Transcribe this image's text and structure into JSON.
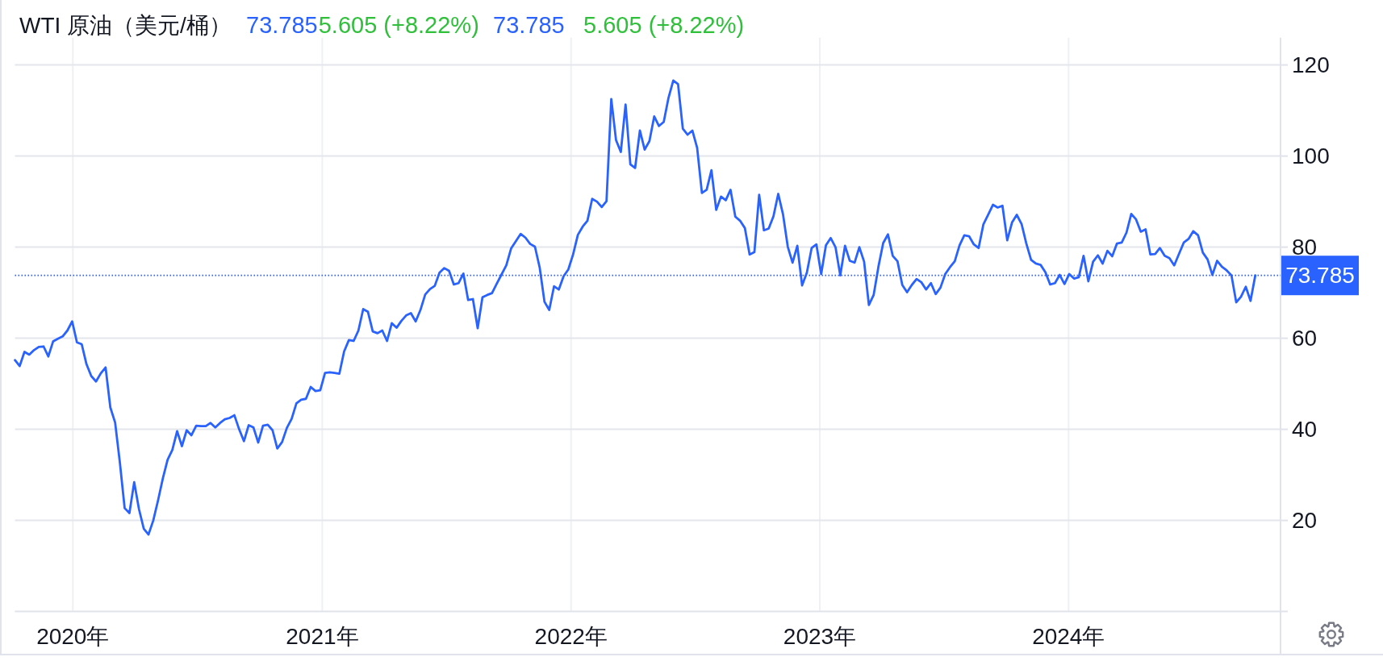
{
  "chart_data": {
    "type": "line",
    "title": "WTI 原油（美元/桶）",
    "annotations": [
      "73.785",
      "5.605 (+8.22%)",
      "73.785",
      "5.605 (+8.22%)"
    ],
    "x": [
      "2019-10-08",
      "2019-10-15",
      "2019-10-22",
      "2019-10-29",
      "2019-11-05",
      "2019-11-12",
      "2019-11-19",
      "2019-11-26",
      "2019-12-03",
      "2019-12-10",
      "2019-12-17",
      "2019-12-24",
      "2019-12-31",
      "2020-01-07",
      "2020-01-14",
      "2020-01-21",
      "2020-01-28",
      "2020-02-04",
      "2020-02-11",
      "2020-02-18",
      "2020-02-25",
      "2020-03-03",
      "2020-03-10",
      "2020-03-17",
      "2020-03-24",
      "2020-03-31",
      "2020-04-07",
      "2020-04-14",
      "2020-04-21",
      "2020-04-28",
      "2020-05-05",
      "2020-05-12",
      "2020-05-19",
      "2020-05-26",
      "2020-06-02",
      "2020-06-09",
      "2020-06-16",
      "2020-06-23",
      "2020-06-30",
      "2020-07-07",
      "2020-07-14",
      "2020-07-21",
      "2020-07-28",
      "2020-08-04",
      "2020-08-11",
      "2020-08-18",
      "2020-08-25",
      "2020-09-01",
      "2020-09-08",
      "2020-09-15",
      "2020-09-22",
      "2020-09-29",
      "2020-10-06",
      "2020-10-13",
      "2020-10-20",
      "2020-10-27",
      "2020-11-03",
      "2020-11-10",
      "2020-11-17",
      "2020-11-24",
      "2020-12-01",
      "2020-12-08",
      "2020-12-15",
      "2020-12-22",
      "2020-12-29",
      "2021-01-05",
      "2021-01-12",
      "2021-01-19",
      "2021-01-26",
      "2021-02-02",
      "2021-02-09",
      "2021-02-16",
      "2021-02-23",
      "2021-03-02",
      "2021-03-09",
      "2021-03-16",
      "2021-03-23",
      "2021-03-30",
      "2021-04-06",
      "2021-04-13",
      "2021-04-20",
      "2021-04-27",
      "2021-05-04",
      "2021-05-11",
      "2021-05-18",
      "2021-05-25",
      "2021-06-01",
      "2021-06-08",
      "2021-06-15",
      "2021-06-22",
      "2021-06-29",
      "2021-07-06",
      "2021-07-13",
      "2021-07-20",
      "2021-07-27",
      "2021-08-03",
      "2021-08-10",
      "2021-08-17",
      "2021-08-24",
      "2021-08-31",
      "2021-09-07",
      "2021-09-14",
      "2021-09-21",
      "2021-09-28",
      "2021-10-05",
      "2021-10-12",
      "2021-10-19",
      "2021-10-26",
      "2021-11-02",
      "2021-11-09",
      "2021-11-16",
      "2021-11-23",
      "2021-11-30",
      "2021-12-07",
      "2021-12-14",
      "2021-12-21",
      "2021-12-28",
      "2022-01-04",
      "2022-01-11",
      "2022-01-18",
      "2022-01-25",
      "2022-02-01",
      "2022-02-08",
      "2022-02-15",
      "2022-02-22",
      "2022-03-01",
      "2022-03-08",
      "2022-03-15",
      "2022-03-22",
      "2022-03-29",
      "2022-04-05",
      "2022-04-12",
      "2022-04-19",
      "2022-04-26",
      "2022-05-03",
      "2022-05-10",
      "2022-05-17",
      "2022-05-24",
      "2022-05-31",
      "2022-06-07",
      "2022-06-14",
      "2022-06-21",
      "2022-06-28",
      "2022-07-05",
      "2022-07-12",
      "2022-07-19",
      "2022-07-26",
      "2022-08-02",
      "2022-08-09",
      "2022-08-16",
      "2022-08-23",
      "2022-08-30",
      "2022-09-06",
      "2022-09-13",
      "2022-09-20",
      "2022-09-27",
      "2022-10-04",
      "2022-10-11",
      "2022-10-18",
      "2022-10-25",
      "2022-11-01",
      "2022-11-08",
      "2022-11-15",
      "2022-11-22",
      "2022-11-29",
      "2022-12-06",
      "2022-12-13",
      "2022-12-20",
      "2022-12-27",
      "2023-01-03",
      "2023-01-10",
      "2023-01-17",
      "2023-01-24",
      "2023-01-31",
      "2023-02-07",
      "2023-02-14",
      "2023-02-21",
      "2023-02-28",
      "2023-03-07",
      "2023-03-14",
      "2023-03-21",
      "2023-03-28",
      "2023-04-04",
      "2023-04-11",
      "2023-04-18",
      "2023-04-25",
      "2023-05-02",
      "2023-05-09",
      "2023-05-16",
      "2023-05-23",
      "2023-05-30",
      "2023-06-06",
      "2023-06-13",
      "2023-06-20",
      "2023-06-27",
      "2023-07-04",
      "2023-07-11",
      "2023-07-18",
      "2023-07-25",
      "2023-08-01",
      "2023-08-08",
      "2023-08-15",
      "2023-08-22",
      "2023-08-29",
      "2023-09-05",
      "2023-09-12",
      "2023-09-19",
      "2023-09-26",
      "2023-10-03",
      "2023-10-10",
      "2023-10-17",
      "2023-10-24",
      "2023-10-31",
      "2023-11-07",
      "2023-11-14",
      "2023-11-21",
      "2023-11-28",
      "2023-12-05",
      "2023-12-12",
      "2023-12-19",
      "2023-12-26",
      "2024-01-02",
      "2024-01-09",
      "2024-01-16",
      "2024-01-23",
      "2024-01-30",
      "2024-02-06",
      "2024-02-13",
      "2024-02-20",
      "2024-02-27",
      "2024-03-05",
      "2024-03-12",
      "2024-03-19",
      "2024-03-26",
      "2024-04-02",
      "2024-04-09",
      "2024-04-16",
      "2024-04-23",
      "2024-04-30",
      "2024-05-07",
      "2024-05-14",
      "2024-05-21",
      "2024-05-28",
      "2024-06-04",
      "2024-06-11",
      "2024-06-18",
      "2024-06-25",
      "2024-07-02",
      "2024-07-09",
      "2024-07-16",
      "2024-07-23",
      "2024-07-30",
      "2024-08-06",
      "2024-08-13",
      "2024-08-20",
      "2024-08-27",
      "2024-09-03",
      "2024-09-10",
      "2024-09-17",
      "2024-09-24",
      "2024-10-01"
    ],
    "series": [
      {
        "color": "#2962ff",
        "values": [
          55.2,
          53.9,
          57.0,
          56.4,
          57.4,
          58.1,
          58.2,
          56.0,
          59.3,
          59.9,
          60.4,
          61.7,
          63.7,
          59.1,
          58.7,
          54.3,
          51.7,
          50.5,
          52.3,
          53.6,
          44.8,
          41.5,
          32.7,
          22.7,
          21.6,
          28.4,
          22.5,
          18.2,
          16.9,
          20.0,
          24.4,
          29.2,
          33.3,
          35.5,
          39.6,
          36.3,
          39.8,
          38.7,
          40.8,
          40.7,
          40.7,
          41.4,
          40.4,
          41.4,
          42.2,
          42.5,
          43.1,
          40.0,
          37.4,
          40.9,
          40.4,
          37.1,
          40.8,
          41.0,
          39.8,
          35.8,
          37.2,
          40.3,
          42.3,
          45.7,
          46.5,
          46.7,
          49.3,
          48.4,
          48.6,
          52.4,
          52.5,
          52.4,
          52.2,
          57.1,
          59.6,
          59.4,
          61.7,
          66.4,
          65.8,
          61.5,
          61.1,
          61.7,
          59.4,
          63.3,
          62.3,
          63.8,
          65.0,
          65.5,
          63.7,
          66.2,
          69.6,
          70.8,
          71.5,
          74.4,
          75.4,
          74.8,
          71.8,
          72.1,
          74.2,
          68.4,
          68.6,
          62.2,
          69.0,
          69.5,
          69.9,
          72.0,
          74.0,
          76.0,
          79.7,
          81.3,
          82.9,
          82.1,
          80.7,
          80.1,
          75.5,
          68.0,
          66.2,
          71.4,
          70.7,
          73.6,
          75.1,
          78.4,
          82.7,
          84.5,
          85.8,
          90.6,
          90.0,
          88.8,
          90.1,
          112.5,
          103.5,
          100.9,
          111.3,
          98.2,
          97.4,
          105.6,
          101.4,
          103.3,
          108.7,
          106.6,
          107.5,
          112.8,
          116.6,
          115.8,
          106.0,
          104.7,
          105.6,
          101.8,
          91.9,
          92.6,
          96.9,
          88.2,
          91.1,
          90.3,
          92.6,
          86.7,
          85.8,
          84.2,
          78.4,
          78.9,
          91.5,
          83.7,
          84.1,
          86.8,
          91.7,
          87.2,
          80.1,
          76.6,
          80.3,
          71.6,
          74.4,
          79.8,
          80.6,
          74.1,
          80.4,
          82.0,
          80.0,
          73.8,
          80.3,
          77.0,
          76.6,
          80.0,
          76.8,
          67.3,
          69.5,
          75.7,
          80.9,
          82.8,
          78.1,
          76.9,
          71.7,
          70.1,
          71.7,
          73.0,
          72.3,
          70.7,
          72.1,
          69.7,
          71.1,
          74.1,
          75.6,
          76.9,
          80.4,
          82.6,
          82.4,
          80.6,
          79.8,
          85.0,
          87.1,
          89.3,
          88.7,
          89.1,
          81.5,
          85.4,
          87.1,
          85.1,
          80.8,
          77.2,
          76.4,
          76.1,
          74.5,
          71.8,
          72.1,
          73.9,
          71.9,
          74.1,
          73.1,
          73.4,
          78.1,
          72.5,
          76.8,
          78.2,
          76.4,
          79.2,
          78.0,
          80.8,
          81.0,
          83.2,
          87.3,
          86.1,
          83.4,
          83.9,
          78.4,
          78.5,
          79.8,
          78.1,
          77.6,
          76.0,
          78.5,
          81.0,
          81.8,
          83.5,
          82.6,
          78.8,
          77.3,
          73.9,
          77.0,
          75.7,
          74.9,
          73.8,
          67.9,
          69.1,
          71.3,
          68.2,
          73.8
        ]
      }
    ],
    "xlim": [
      "2019-10-08",
      "2024-11-07"
    ],
    "ylim": [
      0,
      126
    ],
    "xticks": [
      {
        "value": "2020-01-01",
        "label": "2020年"
      },
      {
        "value": "2021-01-01",
        "label": "2021年"
      },
      {
        "value": "2022-01-01",
        "label": "2022年"
      },
      {
        "value": "2023-01-01",
        "label": "2023年"
      },
      {
        "value": "2024-01-01",
        "label": "2024年"
      }
    ],
    "yticks": [
      20,
      40,
      60,
      80,
      100,
      120
    ],
    "grid": true,
    "ref_lines": [
      {
        "axis": "y",
        "value": 73.785,
        "label": "73.785",
        "color": "#2962ff",
        "line_style": "dotted"
      }
    ]
  }
}
